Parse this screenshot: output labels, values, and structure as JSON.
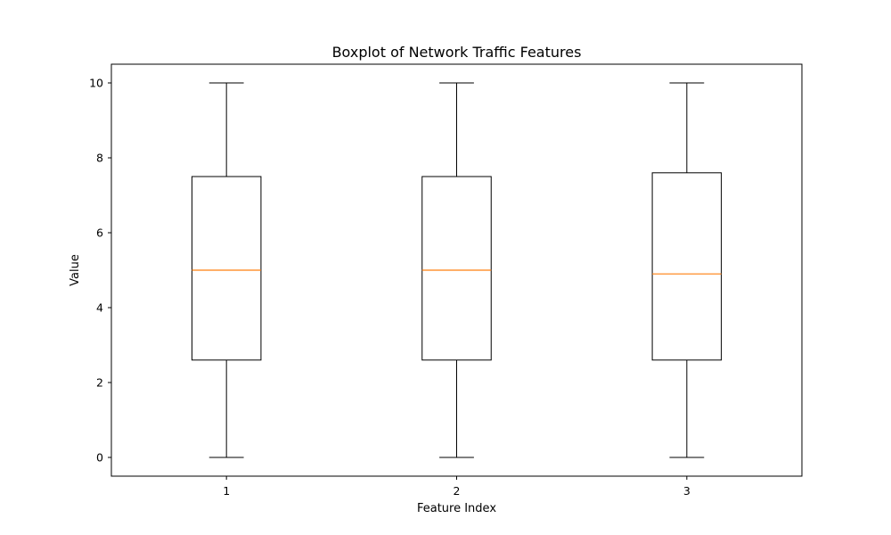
{
  "chart_data": {
    "type": "box",
    "title": "Boxplot of Network Traffic Features",
    "xlabel": "Feature Index",
    "ylabel": "Value",
    "ylim": [
      -0.5,
      10.5
    ],
    "y_ticks": [
      0,
      2,
      4,
      6,
      8,
      10
    ],
    "categories": [
      "1",
      "2",
      "3"
    ],
    "boxes": [
      {
        "category": "1",
        "whisker_low": 0,
        "q1": 2.6,
        "median": 5.0,
        "q3": 7.5,
        "whisker_high": 10
      },
      {
        "category": "2",
        "whisker_low": 0,
        "q1": 2.6,
        "median": 5.0,
        "q3": 7.5,
        "whisker_high": 10
      },
      {
        "category": "3",
        "whisker_low": 0,
        "q1": 2.6,
        "median": 4.9,
        "q3": 7.6,
        "whisker_high": 10
      }
    ],
    "grid": false,
    "colors": {
      "box": "#000000",
      "median": "#ff7f0e",
      "axes": "#000000"
    }
  }
}
